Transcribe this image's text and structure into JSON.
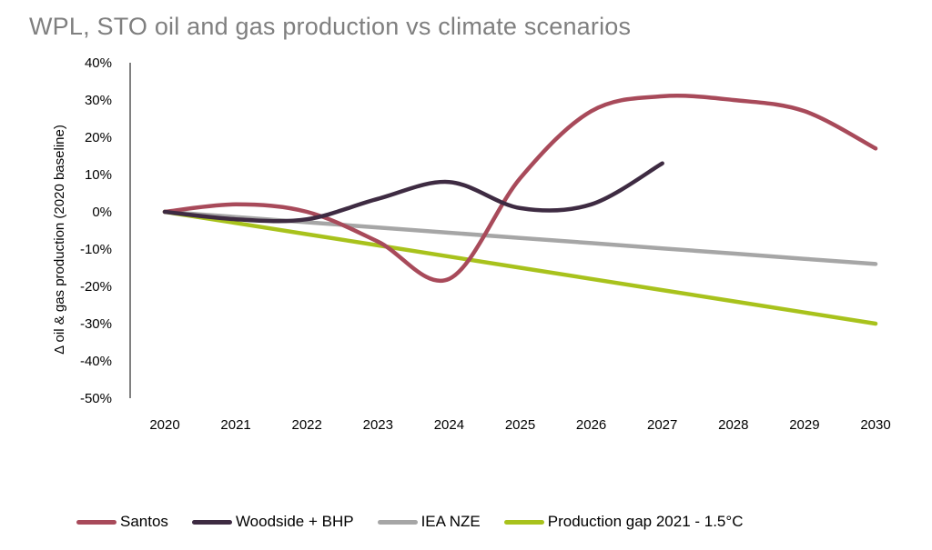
{
  "chart_data": {
    "type": "line",
    "title": "WPL, STO oil and gas production vs climate scenarios",
    "ylabel": "Δ oil & gas production (2020 baseline)",
    "xlabel": "",
    "x": [
      "2020",
      "2021",
      "2022",
      "2023",
      "2024",
      "2025",
      "2026",
      "2027",
      "2028",
      "2029",
      "2030"
    ],
    "ylim": [
      -50,
      40
    ],
    "yticks": [
      40,
      30,
      20,
      10,
      0,
      -10,
      -20,
      -30,
      -40,
      -50
    ],
    "ytick_labels": [
      "40%",
      "30%",
      "20%",
      "10%",
      "0%",
      "-10%",
      "-20%",
      "-30%",
      "-40%",
      "-50%"
    ],
    "grid": false,
    "legend_position": "bottom",
    "series": [
      {
        "name": "Santos",
        "color": "#a84a5a",
        "values": [
          0,
          2,
          0,
          -8,
          -18,
          9,
          27,
          31,
          30,
          27,
          17
        ]
      },
      {
        "name": "Woodside + BHP",
        "color": "#3e2b42",
        "values": [
          0,
          -2,
          -2,
          3.5,
          8,
          1,
          2,
          13,
          null,
          null,
          null
        ]
      },
      {
        "name": "IEA NZE",
        "color": "#a6a6a6",
        "values": [
          0,
          -1.4,
          -2.8,
          -4.2,
          -5.6,
          -7,
          -8.4,
          -9.8,
          -11.2,
          -12.6,
          -14
        ]
      },
      {
        "name": "Production gap 2021 - 1.5°C",
        "color": "#a8c21c",
        "values": [
          0,
          -3,
          -6,
          -9,
          -12,
          -15,
          -18,
          -21,
          -24,
          -27,
          -30
        ]
      }
    ]
  }
}
